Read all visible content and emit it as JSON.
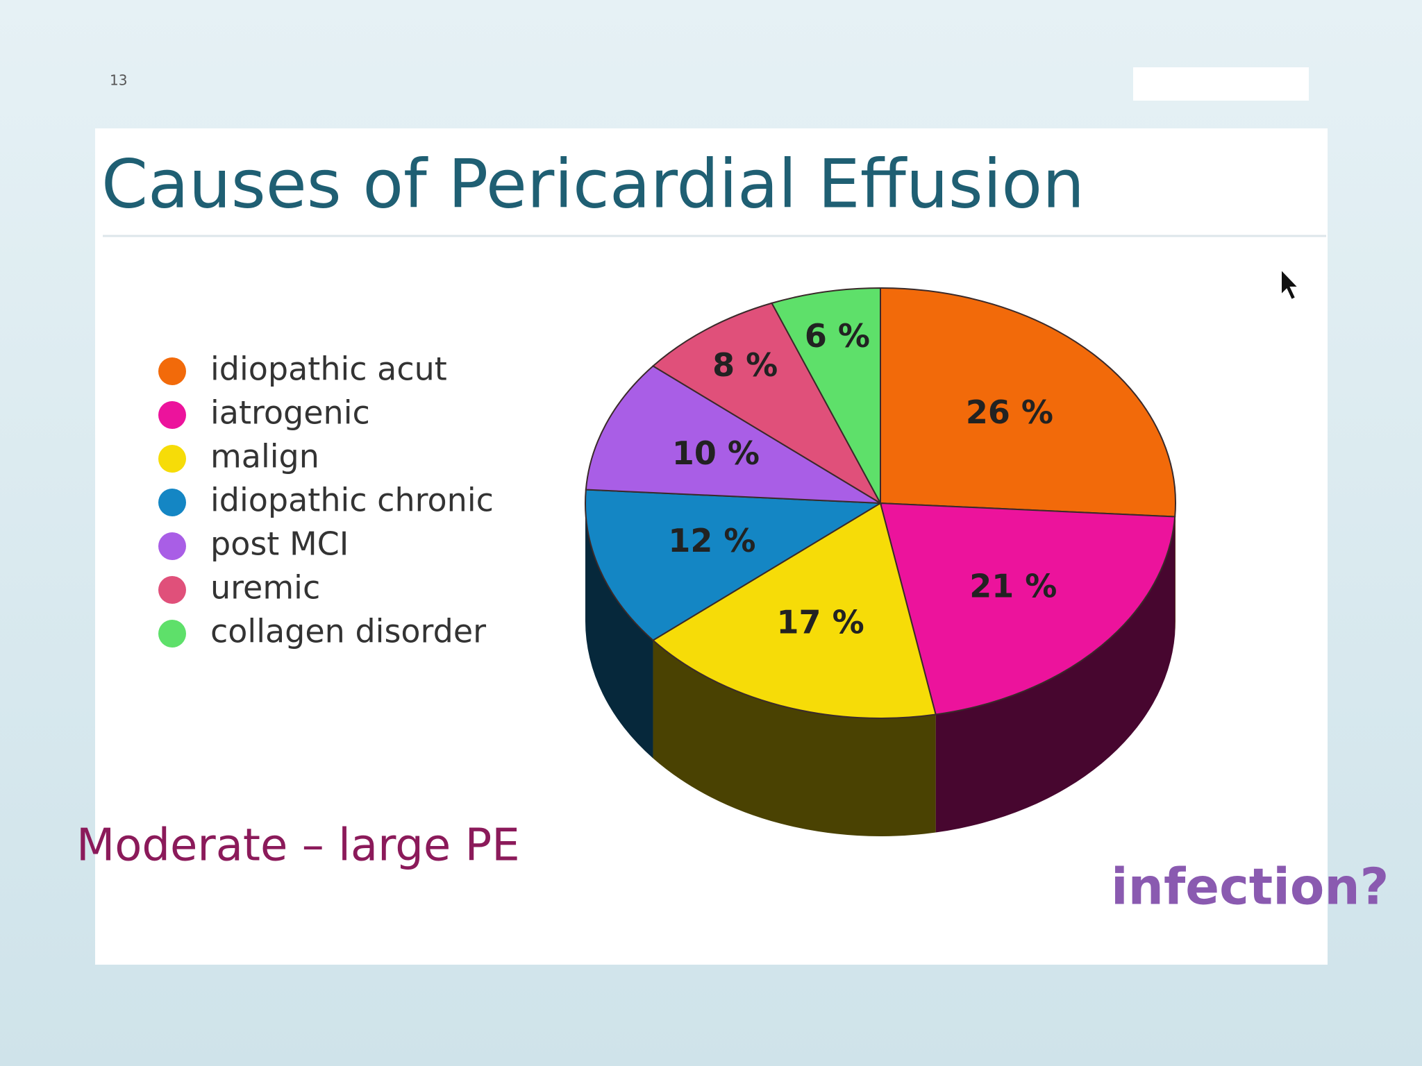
{
  "page_number": "13",
  "chart_data": {
    "type": "pie",
    "title": "Causes of Pericardial Effusion",
    "categories": [
      "idiopathic acut",
      "iatrogenic",
      "malign",
      "idiopathic chronic",
      "post MCI",
      "uremic",
      "collagen disorder"
    ],
    "values": [
      26,
      21,
      17,
      12,
      10,
      8,
      6
    ],
    "value_labels": [
      "26 %",
      "21 %",
      "17 %",
      "12 %",
      "10 %",
      "8 %",
      "6 %"
    ],
    "colors": [
      "#f26a0a",
      "#ec139c",
      "#f6dc08",
      "#1486c4",
      "#a95ee6",
      "#e0507a",
      "#5ee06a"
    ],
    "annotations": [
      "Moderate – large PE",
      "infection?"
    ]
  }
}
